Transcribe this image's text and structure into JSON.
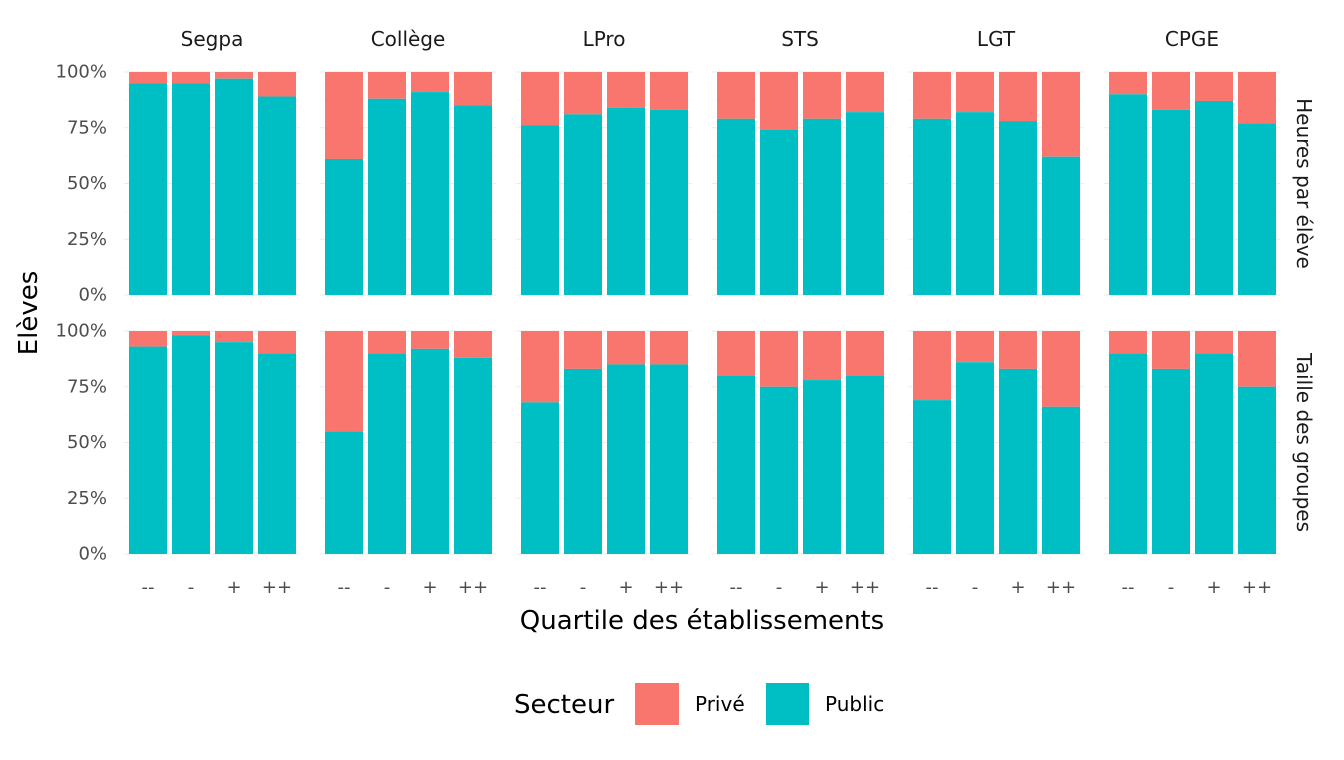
{
  "chart_data": {
    "type": "bar",
    "stacked": true,
    "normalized": true,
    "x_label": "Quartile des établissements",
    "y_label": "Elèves",
    "categories": [
      "--",
      "-",
      "+",
      "++"
    ],
    "y_ticks": [
      "0%",
      "25%",
      "50%",
      "75%",
      "100%"
    ],
    "ylim": [
      0,
      100
    ],
    "grid": true,
    "legend": {
      "title": "Secteur",
      "placement": "bottom",
      "items": [
        {
          "label": "Privé",
          "color": "#F8766D"
        },
        {
          "label": "Public",
          "color": "#00BFC4"
        }
      ]
    },
    "columns": [
      "Segpa",
      "Collège",
      "LPro",
      "STS",
      "LGT",
      "CPGE"
    ],
    "rows": [
      "Heures par élève",
      "Taille des groupes"
    ],
    "panels": [
      {
        "row": "Heures par élève",
        "column": "Segpa",
        "public": [
          95,
          95,
          97,
          89
        ],
        "prive": [
          5,
          5,
          3,
          11
        ]
      },
      {
        "row": "Heures par élève",
        "column": "Collège",
        "public": [
          61,
          88,
          91,
          85
        ],
        "prive": [
          39,
          12,
          9,
          15
        ]
      },
      {
        "row": "Heures par élève",
        "column": "LPro",
        "public": [
          76,
          81,
          84,
          83
        ],
        "prive": [
          24,
          19,
          16,
          17
        ]
      },
      {
        "row": "Heures par élève",
        "column": "STS",
        "public": [
          79,
          74,
          79,
          82
        ],
        "prive": [
          21,
          26,
          21,
          18
        ]
      },
      {
        "row": "Heures par élève",
        "column": "LGT",
        "public": [
          79,
          82,
          78,
          62
        ],
        "prive": [
          21,
          18,
          22,
          38
        ]
      },
      {
        "row": "Heures par élève",
        "column": "CPGE",
        "public": [
          90,
          83,
          87,
          77
        ],
        "prive": [
          10,
          17,
          13,
          23
        ]
      },
      {
        "row": "Taille des groupes",
        "column": "Segpa",
        "public": [
          93,
          98,
          95,
          90
        ],
        "prive": [
          7,
          2,
          5,
          10
        ]
      },
      {
        "row": "Taille des groupes",
        "column": "Collège",
        "public": [
          55,
          90,
          92,
          88
        ],
        "prive": [
          45,
          10,
          8,
          12
        ]
      },
      {
        "row": "Taille des groupes",
        "column": "LPro",
        "public": [
          68,
          83,
          85,
          85
        ],
        "prive": [
          32,
          17,
          15,
          15
        ]
      },
      {
        "row": "Taille des groupes",
        "column": "STS",
        "public": [
          80,
          75,
          78,
          80
        ],
        "prive": [
          20,
          25,
          22,
          20
        ]
      },
      {
        "row": "Taille des groupes",
        "column": "LGT",
        "public": [
          69,
          86,
          83,
          66
        ],
        "prive": [
          31,
          14,
          17,
          34
        ]
      },
      {
        "row": "Taille des groupes",
        "column": "CPGE",
        "public": [
          90,
          83,
          90,
          75
        ],
        "prive": [
          10,
          17,
          10,
          25
        ]
      }
    ]
  }
}
